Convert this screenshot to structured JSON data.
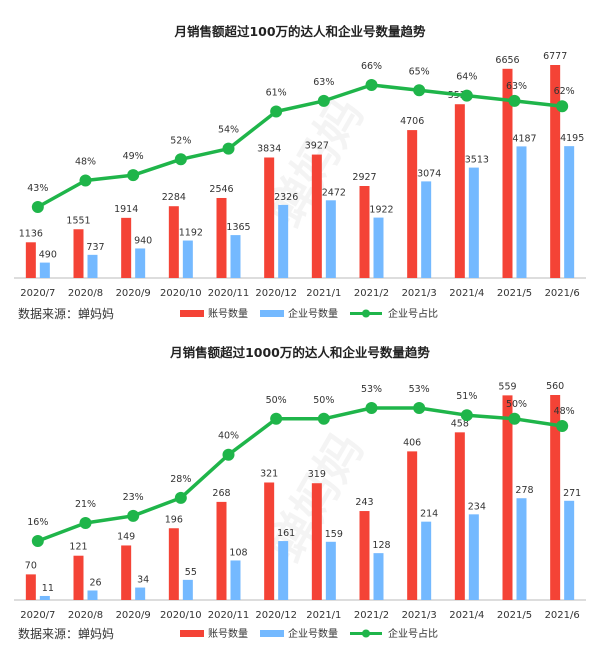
{
  "source_text": "数据来源：蝉妈妈",
  "watermark": "蝉妈妈",
  "colors": {
    "account": "#f44336",
    "enterprise": "#74b9ff",
    "ratio": "#1fb54a",
    "axis": "#bbbbbb"
  },
  "legend": {
    "account": "账号数量",
    "enterprise": "企业号数量",
    "ratio": "企业号占比"
  },
  "chart_data": [
    {
      "type": "bar",
      "title": "月销售额超过100万的达人和企业号数量趋势",
      "categories": [
        "2020/7",
        "2020/8",
        "2020/9",
        "2020/10",
        "2020/11",
        "2020/12",
        "2021/1",
        "2021/2",
        "2021/3",
        "2021/4",
        "2021/5",
        "2021/6"
      ],
      "series": [
        {
          "name": "账号数量",
          "values": [
            1136,
            1551,
            1914,
            2284,
            2546,
            3834,
            3927,
            2927,
            4706,
            5529,
            6656,
            6777
          ]
        },
        {
          "name": "企业号数量",
          "values": [
            490,
            737,
            940,
            1192,
            1365,
            2326,
            2472,
            1922,
            3074,
            3513,
            4187,
            4195
          ]
        },
        {
          "name": "企业号占比",
          "type": "line",
          "values": [
            43,
            48,
            49,
            52,
            54,
            61,
            63,
            66,
            65,
            64,
            63,
            62
          ],
          "labels": [
            "43%",
            "48%",
            "49%",
            "52%",
            "54%",
            "61%",
            "63%",
            "66%",
            "65%",
            "64%",
            "63%",
            "62%"
          ]
        }
      ],
      "legend_position": "bottom",
      "grid": false
    },
    {
      "type": "bar",
      "title": "月销售额超过1000万的达人和企业号数量趋势",
      "categories": [
        "2020/7",
        "2020/8",
        "2020/9",
        "2020/10",
        "2020/11",
        "2020/12",
        "2021/1",
        "2021/2",
        "2021/3",
        "2021/4",
        "2021/5",
        "2021/6"
      ],
      "series": [
        {
          "name": "账号数量",
          "values": [
            70,
            121,
            149,
            196,
            268,
            321,
            319,
            243,
            406,
            458,
            559,
            560
          ]
        },
        {
          "name": "企业号数量",
          "values": [
            11,
            26,
            34,
            55,
            108,
            161,
            159,
            128,
            214,
            234,
            278,
            271
          ]
        },
        {
          "name": "企业号占比",
          "type": "line",
          "values": [
            16,
            21,
            23,
            28,
            40,
            50,
            50,
            53,
            53,
            51,
            50,
            48
          ],
          "labels": [
            "16%",
            "21%",
            "23%",
            "28%",
            "40%",
            "50%",
            "50%",
            "53%",
            "53%",
            "51%",
            "50%",
            "48%"
          ]
        }
      ],
      "legend_position": "bottom",
      "grid": false
    }
  ]
}
